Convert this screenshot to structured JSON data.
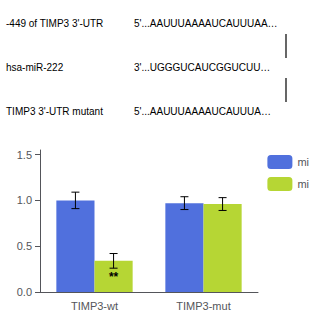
{
  "chart_data": {
    "type": "bar",
    "categories": [
      "TIMP3-wt",
      "TIMP3-mut"
    ],
    "series": [
      {
        "name": "mi",
        "values": [
          1.0,
          0.97
        ],
        "errors": [
          0.09,
          0.07
        ]
      },
      {
        "name": "mi",
        "values": [
          0.34,
          0.96
        ],
        "errors": [
          0.08,
          0.07
        ]
      }
    ],
    "ylim": [
      0.0,
      1.55
    ],
    "yticks": [
      {
        "value": 0.0,
        "label": "0.0"
      },
      {
        "value": 0.5,
        "label": "0.5"
      },
      {
        "value": 1.0,
        "label": "1.0"
      },
      {
        "value": 1.5,
        "label": "1.5"
      }
    ],
    "grid": false,
    "legend": "right",
    "annotations": [
      {
        "text": "-449 of TIMP3 3'-UTR"
      },
      {
        "text": "5'...AAUUUAAAAUCAUUUAA…"
      },
      {
        "text": "hsa-miR-222"
      },
      {
        "text": "3'...UGGGUCAUCGGUCUU…"
      },
      {
        "text": "TIMP3 3'-UTR mutant"
      },
      {
        "text": "5'...AAUUUAAAAUCAUUUA…"
      },
      {
        "text": "**",
        "category": "TIMP3-wt",
        "series": 1
      }
    ]
  }
}
